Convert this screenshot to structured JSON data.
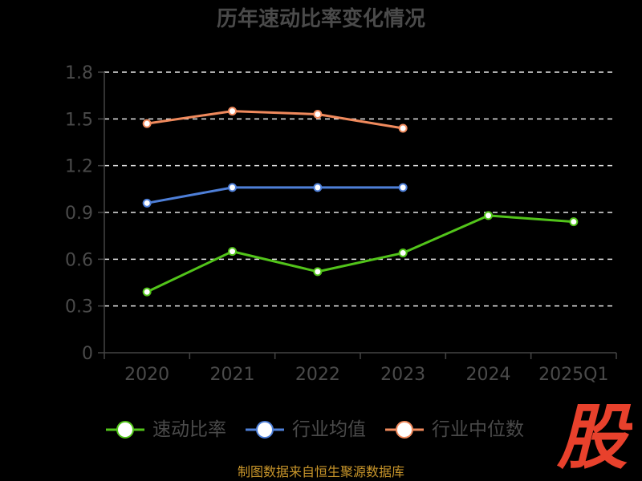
{
  "chart_data": {
    "type": "line",
    "title": "历年速动比率变化情况",
    "categories": [
      "2020",
      "2021",
      "2022",
      "2023",
      "2024",
      "2025Q1"
    ],
    "ylim": [
      0,
      1.8
    ],
    "yticks": [
      "0",
      "0.3",
      "0.6",
      "0.9",
      "1.2",
      "1.5",
      "1.8"
    ],
    "ytick_values": [
      0,
      0.3,
      0.6,
      0.9,
      1.2,
      1.5,
      1.8
    ],
    "grid": true,
    "legend_position": "bottom",
    "series": [
      {
        "name": "速动比率",
        "color": "#52c41a",
        "values": [
          0.39,
          0.65,
          0.52,
          0.64,
          0.88,
          0.84
        ]
      },
      {
        "name": "行业均值",
        "color": "#4e7fd8",
        "values": [
          0.96,
          1.06,
          1.06,
          1.06,
          null,
          null
        ]
      },
      {
        "name": "行业中位数",
        "color": "#f08a5d",
        "values": [
          1.47,
          1.55,
          1.53,
          1.44,
          null,
          null
        ]
      }
    ]
  },
  "brand_mark": {
    "text": "股",
    "color": "#e8412c"
  },
  "source_note": "制图数据来自恒生聚源数据库"
}
